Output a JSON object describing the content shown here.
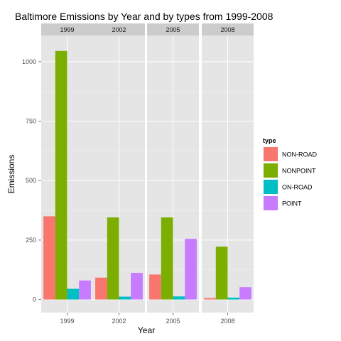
{
  "chart_data": {
    "type": "bar",
    "title": "Baltimore Emissions by Year and by types from 1999-2008",
    "xlabel": "Year",
    "ylabel": "Emissions",
    "ylim": [
      -55,
      1110
    ],
    "yticks": [
      0,
      250,
      500,
      750,
      1000
    ],
    "legend": {
      "title": "type",
      "position": "right"
    },
    "panels": [
      {
        "label": "1999",
        "x_tick": "1999"
      },
      {
        "label": "2002",
        "x_tick": "2002"
      },
      {
        "label": "2005",
        "x_tick": "2005"
      },
      {
        "label": "2008",
        "x_tick": "2008"
      }
    ],
    "series": [
      {
        "name": "NON-ROAD",
        "color": "#f8766d",
        "values": [
          350,
          92,
          105,
          6
        ]
      },
      {
        "name": "NONPOINT",
        "color": "#7cae00",
        "values": [
          1045,
          345,
          345,
          222
        ]
      },
      {
        "name": "ON-ROAD",
        "color": "#00bfc4",
        "values": [
          45,
          12,
          13,
          8
        ]
      },
      {
        "name": "POINT",
        "color": "#c77cff",
        "values": [
          80,
          112,
          255,
          52
        ]
      }
    ]
  }
}
